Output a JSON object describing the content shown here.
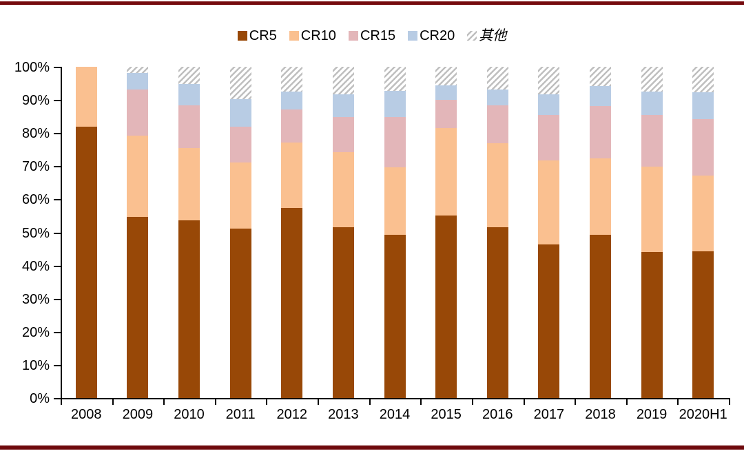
{
  "frame": {
    "top_rule_color": "#750a0d",
    "bottom_rule_color": "#6e090c",
    "background": "#ffffff"
  },
  "legend": {
    "items": [
      {
        "label": "CR5",
        "type": "solid",
        "color": "#984807",
        "icon": "square-swatch"
      },
      {
        "label": "CR10",
        "type": "solid",
        "color": "#FAC090",
        "icon": "square-swatch"
      },
      {
        "label": "CR15",
        "type": "solid",
        "color": "#E3B6B9",
        "icon": "square-swatch"
      },
      {
        "label": "CR20",
        "type": "solid",
        "color": "#B8CCE4",
        "icon": "square-swatch"
      },
      {
        "label": "其他",
        "type": "hatch",
        "color": "#bfbfbf",
        "icon": "hatched-square-swatch"
      }
    ]
  },
  "chart_data": {
    "type": "bar",
    "stacked": true,
    "values_are_cumulative": true,
    "unit": "%",
    "title": "",
    "xlabel": "",
    "ylabel": "",
    "ylim": [
      0,
      100
    ],
    "grid": false,
    "legend_position": "top-center",
    "categories": [
      "2008",
      "2009",
      "2010",
      "2011",
      "2012",
      "2013",
      "2014",
      "2015",
      "2016",
      "2017",
      "2018",
      "2019",
      "2020H1"
    ],
    "y_tick_labels": [
      "0%",
      "10%",
      "20%",
      "30%",
      "40%",
      "50%",
      "60%",
      "70%",
      "80%",
      "90%",
      "100%"
    ],
    "series": [
      {
        "name": "CR5",
        "color": "#984807",
        "values": [
          82.0,
          54.7,
          53.6,
          51.1,
          57.4,
          51.6,
          49.3,
          55.1,
          51.6,
          46.4,
          49.3,
          44.1,
          44.3
        ]
      },
      {
        "name": "CR10",
        "color": "#FAC090",
        "values": [
          100.0,
          79.2,
          75.5,
          71.1,
          77.1,
          74.2,
          69.6,
          81.5,
          76.9,
          71.7,
          72.3,
          69.9,
          67.2
        ]
      },
      {
        "name": "CR15",
        "color": "#E3B6B9",
        "values": [
          100.0,
          93.2,
          88.4,
          81.9,
          87.1,
          84.8,
          84.8,
          90.0,
          88.4,
          85.4,
          88.2,
          85.4,
          84.2
        ]
      },
      {
        "name": "CR20",
        "color": "#B8CCE4",
        "values": [
          100.0,
          98.2,
          94.8,
          90.3,
          92.6,
          91.7,
          92.8,
          94.4,
          93.2,
          91.6,
          94.2,
          92.6,
          92.4
        ]
      },
      {
        "name": "其他",
        "color": "hatch",
        "values": [
          100.0,
          100.0,
          100.0,
          100.0,
          100.0,
          100.0,
          100.0,
          100.0,
          100.0,
          100.0,
          100.0,
          100.0,
          100.0
        ]
      }
    ]
  }
}
